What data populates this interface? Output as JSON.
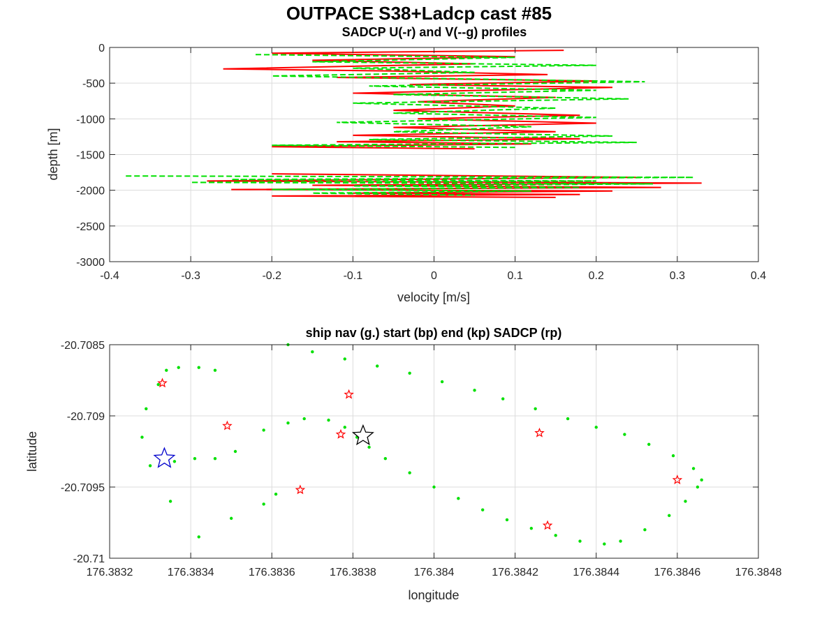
{
  "figure": {
    "title": "OUTPACE S38+Ladcp cast #85"
  },
  "chart_data": [
    {
      "type": "line",
      "title": "SADCP U(-r) and V(--g) profiles",
      "xlabel": "velocity [m/s]",
      "ylabel": "depth [m]",
      "xlim": [
        -0.4,
        0.4
      ],
      "ylim": [
        -3000,
        0
      ],
      "xticks": [
        -0.4,
        -0.3,
        -0.2,
        -0.1,
        0,
        0.1,
        0.2,
        0.3,
        0.4
      ],
      "yticks": [
        0,
        -500,
        -1000,
        -1500,
        -2000,
        -2500,
        -3000
      ],
      "xtick_labels": [
        "-0.4",
        "-0.3",
        "-0.2",
        "-0.1",
        "0",
        "0.1",
        "0.2",
        "0.3",
        "0.4"
      ],
      "ytick_labels": [
        "0",
        "-500",
        "-1000",
        "-1500",
        "-2000",
        "-2500",
        "-3000"
      ],
      "grid": true,
      "series": [
        {
          "color": "#ff0000",
          "style": "solid",
          "segments": [
            {
              "x": [
                0.16,
                -0.2,
                0.1,
                -0.15,
                0.05,
                -0.26,
                -0.05,
                0.14,
                -0.12,
                0.2,
                -0.03,
                0.22,
                -0.1,
                0.15,
                -0.02,
                0.1,
                -0.05,
                0.18,
                -0.02,
                0.2,
                -0.05,
                0.15,
                -0.1,
                0.18,
                -0.12,
                0.12,
                -0.2,
                0.05
              ],
              "y": [
                -40,
                -80,
                -130,
                -180,
                -230,
                -300,
                -330,
                -380,
                -420,
                -470,
                -520,
                -560,
                -640,
                -700,
                -760,
                -820,
                -880,
                -950,
                -1000,
                -1060,
                -1120,
                -1180,
                -1230,
                -1280,
                -1320,
                -1350,
                -1390,
                -1420
              ]
            },
            {
              "x": [
                -0.2,
                0.25,
                -0.28,
                0.33,
                -0.15,
                0.28,
                -0.25,
                0.22,
                -0.1,
                0.18,
                -0.2,
                0.15
              ],
              "y": [
                -1770,
                -1820,
                -1870,
                -1900,
                -1930,
                -1960,
                -1990,
                -2010,
                -2040,
                -2060,
                -2080,
                -2100
              ]
            }
          ]
        },
        {
          "color": "#00e000",
          "style": "dashed",
          "segments": [
            {
              "x": [
                -0.22,
                0.1,
                -0.15,
                0.2,
                -0.1,
                0.05,
                -0.2,
                0.26,
                -0.08,
                0.2,
                -0.05,
                0.24,
                -0.1,
                0.15,
                -0.05,
                0.2,
                -0.12,
                0.12,
                -0.05,
                0.22,
                -0.08,
                0.25,
                -0.2,
                0.1
              ],
              "y": [
                -100,
                -140,
                -200,
                -250,
                -290,
                -350,
                -400,
                -480,
                -540,
                -600,
                -660,
                -720,
                -780,
                -850,
                -920,
                -980,
                -1050,
                -1110,
                -1180,
                -1240,
                -1290,
                -1330,
                -1370,
                -1400
              ]
            },
            {
              "x": [
                -0.38,
                0.32,
                -0.25,
                0.2,
                -0.3,
                0.27,
                -0.1,
                0.18,
                -0.2,
                0.12,
                -0.15,
                0.05
              ],
              "y": [
                -1800,
                -1820,
                -1850,
                -1870,
                -1890,
                -1910,
                -1940,
                -1960,
                -1990,
                -2010,
                -2040,
                -2070
              ]
            }
          ]
        }
      ]
    },
    {
      "type": "scatter",
      "title": "ship nav (g.) start (bp) end (kp) SADCP (rp)",
      "xlabel": "longitude",
      "ylabel": "latitude",
      "xlim": [
        176.3832,
        176.3848
      ],
      "ylim": [
        -20.71,
        -20.7085
      ],
      "xticks": [
        176.3832,
        176.3834,
        176.3836,
        176.3838,
        176.384,
        176.3842,
        176.3844,
        176.3846,
        176.3848
      ],
      "yticks": [
        -20.7085,
        -20.709,
        -20.7095,
        -20.71
      ],
      "xtick_labels": [
        "176.3832",
        "176.3834",
        "176.3836",
        "176.3838",
        "176.384",
        "176.3842",
        "176.3844",
        "176.3846",
        "176.3848"
      ],
      "ytick_labels": [
        "-20.7085",
        "-20.709",
        "-20.7095",
        "-20.71"
      ],
      "grid": true,
      "ship_nav": {
        "color": "#00e000",
        "lon": [
          176.38336,
          176.38341,
          176.38346,
          176.38351,
          176.38358,
          176.38364,
          176.38368,
          176.38374,
          176.38378,
          176.38381,
          176.38384,
          176.38388,
          176.38394,
          176.384,
          176.38406,
          176.38412,
          176.38418,
          176.38424,
          176.3843,
          176.38436,
          176.38442,
          176.38446,
          176.38452,
          176.38458,
          176.38462,
          176.38465,
          176.38466,
          176.38464,
          176.38459,
          176.38453,
          176.38447,
          176.3844,
          176.38433,
          176.38425,
          176.38417,
          176.3841,
          176.38402,
          176.38394,
          176.38386,
          176.38378,
          176.3837,
          176.38364,
          176.38361,
          176.38358,
          176.3835,
          176.38342,
          176.38335,
          176.3833,
          176.38328,
          176.38329,
          176.38332,
          176.38334,
          176.38337,
          176.38342,
          176.38346
        ],
        "lat": [
          -20.70932,
          -20.7093,
          -20.7093,
          -20.70925,
          -20.7091,
          -20.70905,
          -20.70902,
          -20.70903,
          -20.70908,
          -20.70915,
          -20.70922,
          -20.7093,
          -20.7094,
          -20.7095,
          -20.70958,
          -20.70966,
          -20.70973,
          -20.70979,
          -20.70984,
          -20.70988,
          -20.7099,
          -20.70988,
          -20.7098,
          -20.7097,
          -20.7096,
          -20.7095,
          -20.70945,
          -20.70937,
          -20.70928,
          -20.7092,
          -20.70913,
          -20.70908,
          -20.70902,
          -20.70895,
          -20.70888,
          -20.70882,
          -20.70876,
          -20.7087,
          -20.70865,
          -20.7086,
          -20.70855,
          -20.7085,
          -20.70955,
          -20.70962,
          -20.70972,
          -20.70985,
          -20.7096,
          -20.70935,
          -20.70915,
          -20.70895,
          -20.70878,
          -20.70868,
          -20.70866,
          -20.70866,
          -20.70868
        ],
        "marker": "dot"
      },
      "start": {
        "lon": 176.383335,
        "lat": -20.7093,
        "color": "#0000cc"
      },
      "end": {
        "lon": 176.383825,
        "lat": -20.70914,
        "color": "#000000"
      },
      "sadcp": {
        "color": "#ff0000",
        "lon": [
          176.38333,
          176.38379,
          176.38349,
          176.38377,
          176.38367,
          176.38426,
          176.3846,
          176.38428
        ],
        "lat": [
          -20.70877,
          -20.70885,
          -20.70907,
          -20.70913,
          -20.70952,
          -20.70912,
          -20.70945,
          -20.70977
        ]
      }
    }
  ]
}
